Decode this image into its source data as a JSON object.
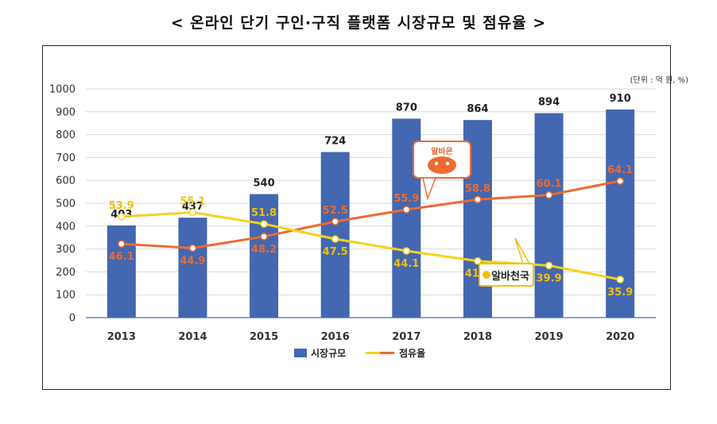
{
  "title": "< 온라인 단기 구인·구직 플랫폼 시장규모 및 점유율 >",
  "unit_note": "(단위 : 억 원, %)",
  "logos": {
    "albamon": "알바몬",
    "alba_heaven": "알바천국"
  },
  "colors": {
    "bar": "#4367b0",
    "albamon": "#ed6a32",
    "alba_heaven": "#ffe000"
  },
  "chart_data": {
    "type": "bar",
    "title": "온라인 단기 구인·구직 플랫폼 시장규모 및 점유율",
    "categories": [
      "2013",
      "2014",
      "2015",
      "2016",
      "2017",
      "2018",
      "2019",
      "2020"
    ],
    "ylim": [
      0,
      1000
    ],
    "yticks": [
      0,
      100,
      200,
      300,
      400,
      500,
      600,
      700,
      800,
      900,
      1000
    ],
    "grid": true,
    "legend_placement": "bottom",
    "series": [
      {
        "name": "시장규모",
        "type": "bar",
        "values": [
          403,
          437,
          540,
          724,
          870,
          864,
          894,
          910
        ]
      },
      {
        "name": "점유율",
        "type": "line",
        "brand": "알바몬",
        "values": [
          46.1,
          44.9,
          48.2,
          52.5,
          55.9,
          58.8,
          60.1,
          64.1
        ]
      },
      {
        "type": "line",
        "brand": "알바천국",
        "values": [
          53.9,
          55.1,
          51.8,
          47.5,
          44.1,
          41.2,
          39.9,
          35.9
        ]
      }
    ],
    "legend": [
      "시장규모",
      "점유율"
    ]
  }
}
